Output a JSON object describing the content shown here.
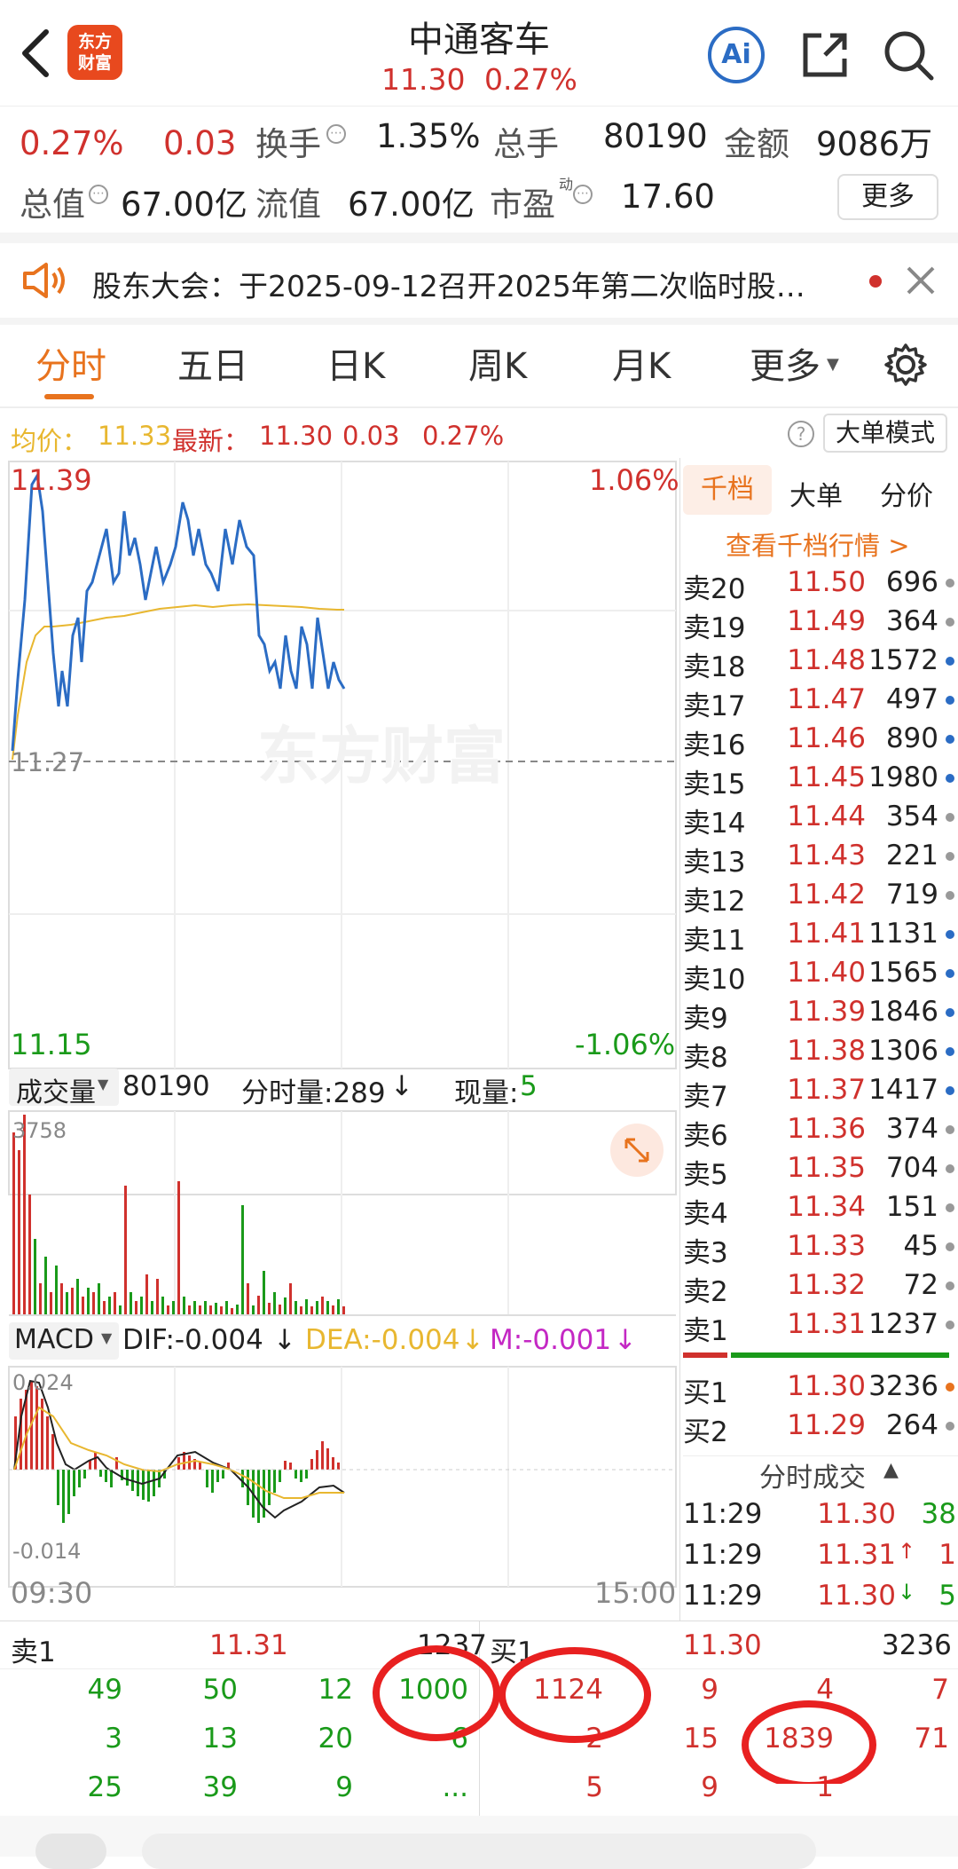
{
  "header": {
    "back_icon": "chevron-left-icon",
    "logo": "东方\n财富",
    "title": "中通客车",
    "price": "11.30",
    "change_pct": "0.27%",
    "ai_label": "Ai"
  },
  "quote": {
    "pct": "0.27%",
    "chg": "0.03",
    "turnover_label": "换手",
    "turnover": "1.35%",
    "volume_label": "总手",
    "volume": "80190",
    "amount_label": "金额",
    "amount": "9086万",
    "mktcap_label": "总值",
    "mktcap": "67.00亿",
    "float_label": "流值",
    "float": "67.00亿",
    "pe_label": "市盈",
    "pe_sup": "动",
    "pe": "17.60",
    "more_label": "更多"
  },
  "notice": {
    "text": "股东大会：于2025-09-12召开2025年第二次临时股…"
  },
  "tabs": [
    "分时",
    "五日",
    "日K",
    "周K",
    "月K",
    "更多"
  ],
  "info": {
    "avg_label": "均价：",
    "avg": "11.33",
    "latest_label": "最新：",
    "latest": "11.30",
    "chg": "0.03",
    "pct": "0.27%",
    "mode_label": "大单模式"
  },
  "chart": {
    "high": "11.39",
    "mid": "11.27",
    "low": "11.15",
    "up_pct": "1.06%",
    "down_pct": "-1.06%",
    "start_time": "09:30",
    "end_time": "15:00",
    "watermark": "东方财富"
  },
  "volume": {
    "label": "成交量",
    "total": "80190",
    "tick_label": "分时量:289",
    "cur_label": "现量:",
    "cur": "5",
    "max": "3758"
  },
  "macd": {
    "label": "MACD",
    "dif": "DIF:-0.004",
    "dea": "DEA:-0.004",
    "m": "M:-0.001",
    "top": "0.024",
    "bottom": "-0.014"
  },
  "orderbook": {
    "tabs": [
      "千档",
      "大单",
      "分价"
    ],
    "link": "查看千档行情 >",
    "asks": [
      {
        "l": "卖20",
        "p": "11.50",
        "v": "696",
        "c": "#999999"
      },
      {
        "l": "卖19",
        "p": "11.49",
        "v": "364",
        "c": "#999999"
      },
      {
        "l": "卖18",
        "p": "11.48",
        "v": "1572",
        "c": "#2b6cc4"
      },
      {
        "l": "卖17",
        "p": "11.47",
        "v": "497",
        "c": "#2b6cc4"
      },
      {
        "l": "卖16",
        "p": "11.46",
        "v": "890",
        "c": "#2b6cc4"
      },
      {
        "l": "卖15",
        "p": "11.45",
        "v": "1980",
        "c": "#2b6cc4"
      },
      {
        "l": "卖14",
        "p": "11.44",
        "v": "354",
        "c": "#999999"
      },
      {
        "l": "卖13",
        "p": "11.43",
        "v": "221",
        "c": "#999999"
      },
      {
        "l": "卖12",
        "p": "11.42",
        "v": "719",
        "c": "#999999"
      },
      {
        "l": "卖11",
        "p": "11.41",
        "v": "1131",
        "c": "#2b6cc4"
      },
      {
        "l": "卖10",
        "p": "11.40",
        "v": "1565",
        "c": "#2b6cc4"
      },
      {
        "l": "卖9",
        "p": "11.39",
        "v": "1846",
        "c": "#2b6cc4"
      },
      {
        "l": "卖8",
        "p": "11.38",
        "v": "1306",
        "c": "#2b6cc4"
      },
      {
        "l": "卖7",
        "p": "11.37",
        "v": "1417",
        "c": "#2b6cc4"
      },
      {
        "l": "卖6",
        "p": "11.36",
        "v": "374",
        "c": "#999999"
      },
      {
        "l": "卖5",
        "p": "11.35",
        "v": "704",
        "c": "#999999"
      },
      {
        "l": "卖4",
        "p": "11.34",
        "v": "151",
        "c": "#999999"
      },
      {
        "l": "卖3",
        "p": "11.33",
        "v": "45",
        "c": "#999999"
      },
      {
        "l": "卖2",
        "p": "11.32",
        "v": "72",
        "c": "#999999"
      },
      {
        "l": "卖1",
        "p": "11.31",
        "v": "1237",
        "c": "#999999"
      }
    ],
    "bids": [
      {
        "l": "买1",
        "p": "11.30",
        "v": "3236",
        "c": "#e8731e"
      },
      {
        "l": "买2",
        "p": "11.29",
        "v": "264",
        "c": "#999999"
      }
    ],
    "trades_label": "分时成交",
    "trades": [
      {
        "t": "11:29",
        "p": "11.30",
        "a": "",
        "v": "38"
      },
      {
        "t": "11:29",
        "p": "11.31",
        "a": "↑",
        "v": "1"
      },
      {
        "t": "11:29",
        "p": "11.30",
        "a": "↓",
        "v": "5"
      }
    ]
  },
  "bottom": {
    "sell_label": "卖1",
    "sell_price": "11.31",
    "sell_vol": "1237",
    "buy_label": "买1",
    "buy_price": "11.30",
    "buy_vol": "3236",
    "left_rows": [
      [
        "49",
        "50",
        "12",
        "1000"
      ],
      [
        "3",
        "13",
        "20",
        "6"
      ],
      [
        "25",
        "39",
        "9",
        "..."
      ]
    ],
    "right_rows": [
      [
        "1124",
        "9",
        "4",
        "7"
      ],
      [
        "2",
        "15",
        "1839",
        "71"
      ],
      [
        "5",
        "9",
        "1",
        ""
      ]
    ]
  },
  "colors": {
    "red": "#d0312d",
    "green": "#1a9a1a",
    "blue": "#2b6cc4",
    "yellow": "#e8b730",
    "accent": "#e8731e"
  }
}
